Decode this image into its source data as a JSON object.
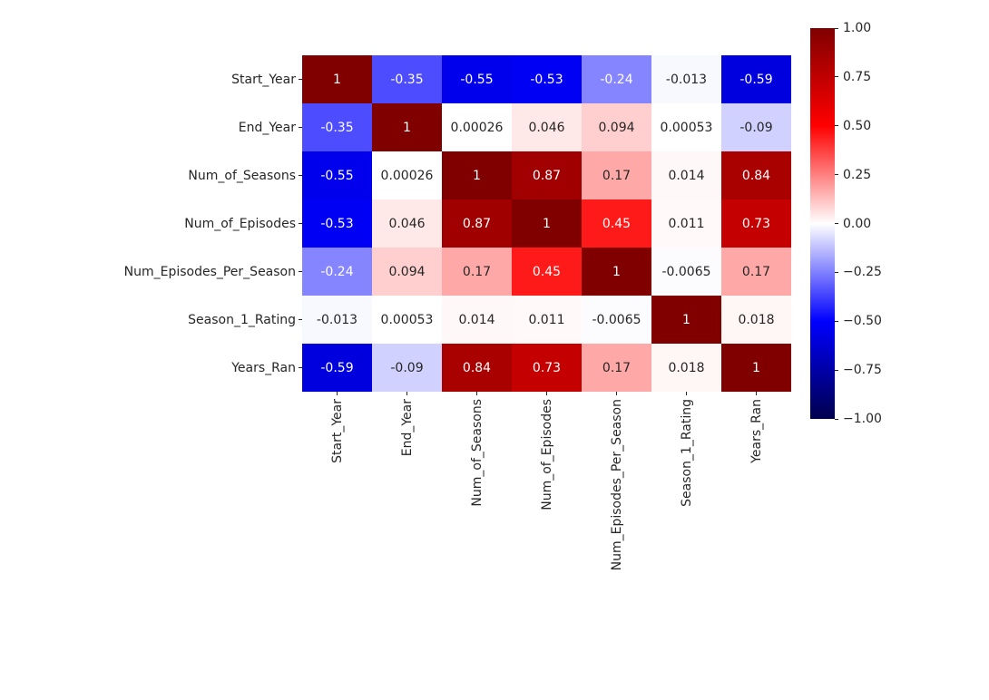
{
  "figure": {
    "background": "#ffffff",
    "text_color": "#262626"
  },
  "chart_data": {
    "type": "heatmap",
    "title": "",
    "xlabel": "",
    "ylabel": "",
    "grid": false,
    "legend_position": "colorbar-right",
    "categories": [
      "Start_Year",
      "End_Year",
      "Num_of_Seasons",
      "Num_of_Episodes",
      "Num_Episodes_Per_Season",
      "Season_1_Rating",
      "Years_Ran"
    ],
    "values": [
      [
        1,
        -0.35,
        -0.55,
        -0.53,
        -0.24,
        -0.013,
        -0.59
      ],
      [
        -0.35,
        1,
        0.00026,
        0.046,
        0.094,
        0.00053,
        -0.09
      ],
      [
        -0.55,
        0.00026,
        1,
        0.87,
        0.17,
        0.014,
        0.84
      ],
      [
        -0.53,
        0.046,
        0.87,
        1,
        0.45,
        0.011,
        0.73
      ],
      [
        -0.24,
        0.094,
        0.17,
        0.45,
        1,
        -0.0065,
        0.17
      ],
      [
        -0.013,
        0.00053,
        0.014,
        0.011,
        -0.0065,
        1,
        0.018
      ],
      [
        -0.59,
        -0.09,
        0.84,
        0.73,
        0.17,
        0.018,
        1
      ]
    ],
    "labels": [
      [
        "1",
        "-0.35",
        "-0.55",
        "-0.53",
        "-0.24",
        "-0.013",
        "-0.59"
      ],
      [
        "-0.35",
        "1",
        "0.00026",
        "0.046",
        "0.094",
        "0.00053",
        "-0.09"
      ],
      [
        "-0.55",
        "0.00026",
        "1",
        "0.87",
        "0.17",
        "0.014",
        "0.84"
      ],
      [
        "-0.53",
        "0.046",
        "0.87",
        "1",
        "0.45",
        "0.011",
        "0.73"
      ],
      [
        "-0.24",
        "0.094",
        "0.17",
        "0.45",
        "1",
        "-0.0065",
        "0.17"
      ],
      [
        "-0.013",
        "0.00053",
        "0.014",
        "0.011",
        "-0.0065",
        "1",
        "0.018"
      ],
      [
        "-0.59",
        "-0.09",
        "0.84",
        "0.73",
        "0.17",
        "0.018",
        "1"
      ]
    ],
    "vmin": -1,
    "vmax": 1,
    "colormap": {
      "name": "seismic",
      "stops": [
        {
          "pos": 0.0,
          "color": "#00004d"
        },
        {
          "pos": 0.25,
          "color": "#0000ff"
        },
        {
          "pos": 0.5,
          "color": "#ffffff"
        },
        {
          "pos": 0.75,
          "color": "#ff0000"
        },
        {
          "pos": 1.0,
          "color": "#800000"
        }
      ]
    },
    "annotation_text_light": "#ffffff",
    "annotation_text_dark": "#262626",
    "colorbar": {
      "ticks": [
        "1.00",
        "0.75",
        "0.50",
        "0.25",
        "0.00",
        "−0.25",
        "−0.50",
        "−0.75",
        "−1.00"
      ]
    }
  }
}
